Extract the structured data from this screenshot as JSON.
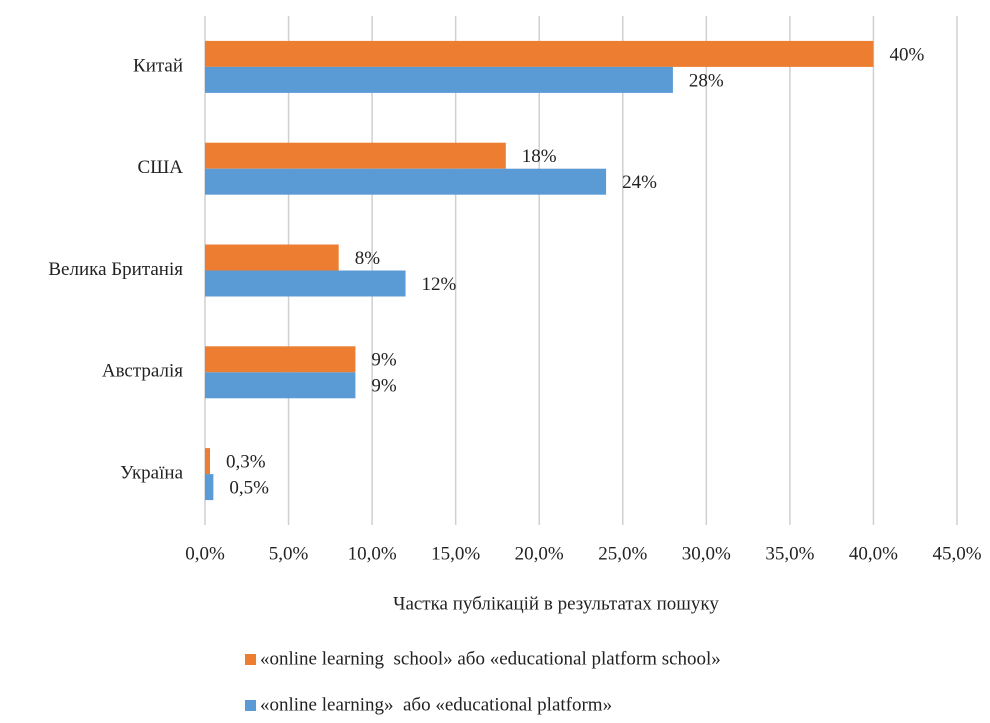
{
  "chart_data": {
    "type": "hbar",
    "categories": [
      "Китай",
      "США",
      "Велика Британія",
      "Австралія",
      "Україна"
    ],
    "series": [
      {
        "name": "«online learning  school» або «educational platform school»",
        "color": "#ed7d31",
        "values": [
          40,
          18,
          8,
          9,
          0.3
        ],
        "value_labels": [
          "40%",
          "18%",
          "8%",
          "9%",
          "0,3%"
        ]
      },
      {
        "name": "«online learning»  або «educational platform»",
        "color": "#5b9bd5",
        "values": [
          28,
          24,
          12,
          9,
          0.5
        ],
        "value_labels": [
          "28%",
          "24%",
          "12%",
          "9%",
          "0,5%"
        ]
      }
    ],
    "xlim": [
      0,
      45
    ],
    "xticks": [
      {
        "value": 0,
        "label": "0,0%"
      },
      {
        "value": 5,
        "label": "5,0%"
      },
      {
        "value": 10,
        "label": "10,0%"
      },
      {
        "value": 15,
        "label": "15,0%"
      },
      {
        "value": 20,
        "label": "20,0%"
      },
      {
        "value": 25,
        "label": "25,0%"
      },
      {
        "value": 30,
        "label": "30,0%"
      },
      {
        "value": 35,
        "label": "35,0%"
      },
      {
        "value": 40,
        "label": "40,0%"
      },
      {
        "value": 45,
        "label": "45,0%"
      }
    ],
    "xlabel": "Частка публікацій в результатах пошуку",
    "grid": true,
    "legend": "bottom"
  }
}
